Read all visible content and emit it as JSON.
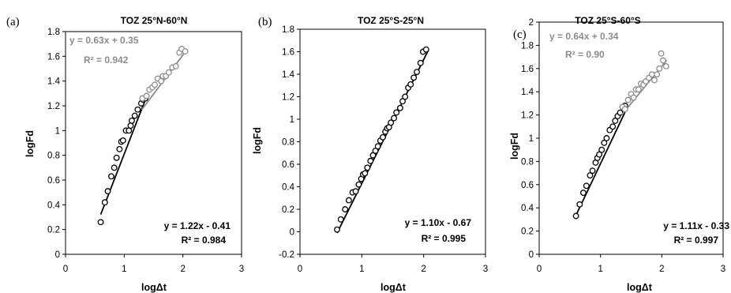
{
  "chart_data": [
    {
      "type": "scatter",
      "panel_label": "(a)",
      "title": "TOZ 25°N-60°N",
      "xlabel": "logΔt",
      "ylabel": "logFd",
      "xlim": [
        0,
        3
      ],
      "ylim": [
        0,
        1.8
      ],
      "xticks": [
        "0",
        "1",
        "2",
        "3"
      ],
      "yticks": [
        "0",
        "0.2",
        "0.4",
        "0.6",
        "0.8",
        "1",
        "1.2",
        "1.4",
        "1.6",
        "1.8"
      ],
      "grid": false,
      "colors": {
        "lower": "#000000",
        "upper": "#8c8c8c"
      },
      "series": [
        {
          "fit": {
            "slope": 1.22,
            "intercept": -0.41,
            "x_range": [
              0.6,
              1.36
            ]
          },
          "points": [
            [
              0.6,
              0.26
            ],
            [
              0.67,
              0.42
            ],
            [
              0.72,
              0.51
            ],
            [
              0.78,
              0.63
            ],
            [
              0.83,
              0.7
            ],
            [
              0.87,
              0.78
            ],
            [
              0.92,
              0.85
            ],
            [
              0.95,
              0.91
            ],
            [
              0.98,
              0.92
            ],
            [
              1.03,
              1.0
            ],
            [
              1.08,
              1.0
            ],
            [
              1.11,
              1.04
            ],
            [
              1.13,
              1.08
            ],
            [
              1.18,
              1.12
            ],
            [
              1.23,
              1.17
            ],
            [
              1.29,
              1.22
            ],
            [
              1.32,
              1.25
            ],
            [
              1.36,
              1.26
            ]
          ],
          "equation_text": "y = 1.22x - 0.41",
          "r2_text": "R² = 0.984"
        },
        {
          "fit": {
            "slope": 0.63,
            "intercept": 0.35,
            "x_range": [
              1.3,
              2.05
            ]
          },
          "points": [
            [
              1.31,
              1.26
            ],
            [
              1.38,
              1.28
            ],
            [
              1.43,
              1.33
            ],
            [
              1.48,
              1.35
            ],
            [
              1.52,
              1.37
            ],
            [
              1.57,
              1.42
            ],
            [
              1.63,
              1.4
            ],
            [
              1.66,
              1.44
            ],
            [
              1.71,
              1.44
            ],
            [
              1.76,
              1.47
            ],
            [
              1.82,
              1.51
            ],
            [
              1.88,
              1.52
            ],
            [
              1.94,
              1.63
            ],
            [
              1.98,
              1.66
            ],
            [
              2.04,
              1.64
            ]
          ],
          "equation_text": "y = 0.63x + 0.35",
          "r2_text": "R² = 0.942"
        }
      ]
    },
    {
      "type": "scatter",
      "panel_label": "(b)",
      "title": "TOZ 25°S-25°N",
      "xlabel": "logΔt",
      "ylabel": "logFd",
      "xlim": [
        0,
        3
      ],
      "ylim": [
        -0.2,
        1.8
      ],
      "xticks": [
        "0",
        "1",
        "2",
        "3"
      ],
      "yticks": [
        "-0.2",
        "0",
        "0.2",
        "0.4",
        "0.6",
        "0.8",
        "1",
        "1.2",
        "1.4",
        "1.6",
        "1.8"
      ],
      "grid": false,
      "colors": {
        "lower": "#000000"
      },
      "series": [
        {
          "fit": {
            "slope": 1.1,
            "intercept": -0.67,
            "x_range": [
              0.6,
              2.08
            ]
          },
          "points": [
            [
              0.6,
              0.02
            ],
            [
              0.66,
              0.11
            ],
            [
              0.73,
              0.2
            ],
            [
              0.79,
              0.28
            ],
            [
              0.85,
              0.35
            ],
            [
              0.9,
              0.36
            ],
            [
              0.95,
              0.42
            ],
            [
              0.99,
              0.47
            ],
            [
              1.02,
              0.51
            ],
            [
              1.05,
              0.52
            ],
            [
              1.09,
              0.57
            ],
            [
              1.14,
              0.63
            ],
            [
              1.18,
              0.68
            ],
            [
              1.22,
              0.72
            ],
            [
              1.26,
              0.76
            ],
            [
              1.3,
              0.81
            ],
            [
              1.34,
              0.84
            ],
            [
              1.38,
              0.89
            ],
            [
              1.41,
              0.92
            ],
            [
              1.44,
              0.93
            ],
            [
              1.47,
              0.97
            ],
            [
              1.52,
              1.01
            ],
            [
              1.56,
              1.06
            ],
            [
              1.62,
              1.1
            ],
            [
              1.66,
              1.16
            ],
            [
              1.7,
              1.2
            ],
            [
              1.75,
              1.28
            ],
            [
              1.79,
              1.31
            ],
            [
              1.84,
              1.37
            ],
            [
              1.89,
              1.42
            ],
            [
              1.95,
              1.5
            ],
            [
              1.99,
              1.6
            ],
            [
              2.04,
              1.62
            ]
          ],
          "equation_text": "y = 1.10x - 0.67",
          "r2_text": "R² = 0.995"
        }
      ]
    },
    {
      "type": "scatter",
      "panel_label": "(c)",
      "title": "TOZ 25°S-60°S",
      "xlabel": "logΔt",
      "ylabel": "logFd",
      "xlim": [
        0,
        3
      ],
      "ylim": [
        0,
        2
      ],
      "xticks": [
        "0",
        "1",
        "2",
        "3"
      ],
      "yticks": [
        "0",
        "0.2",
        "0.4",
        "0.6",
        "0.8",
        "1",
        "1.2",
        "1.4",
        "1.6",
        "1.8",
        "2"
      ],
      "grid": false,
      "colors": {
        "lower": "#000000",
        "upper": "#8c8c8c"
      },
      "series": [
        {
          "fit": {
            "slope": 1.11,
            "intercept": -0.33,
            "x_range": [
              0.6,
              1.4
            ]
          },
          "points": [
            [
              0.6,
              0.33
            ],
            [
              0.66,
              0.43
            ],
            [
              0.72,
              0.53
            ],
            [
              0.77,
              0.59
            ],
            [
              0.83,
              0.68
            ],
            [
              0.87,
              0.72
            ],
            [
              0.92,
              0.79
            ],
            [
              0.95,
              0.83
            ],
            [
              0.98,
              0.86
            ],
            [
              1.02,
              0.9
            ],
            [
              1.06,
              0.96
            ],
            [
              1.1,
              1.0
            ],
            [
              1.15,
              1.07
            ],
            [
              1.2,
              1.1
            ],
            [
              1.24,
              1.15
            ],
            [
              1.28,
              1.19
            ],
            [
              1.32,
              1.22
            ],
            [
              1.36,
              1.27
            ],
            [
              1.4,
              1.28
            ]
          ],
          "equation_text": "y = 1.11x - 0.33",
          "r2_text": "R² = 0.997"
        },
        {
          "fit": {
            "slope": 0.64,
            "intercept": 0.34,
            "x_range": [
              1.35,
              2.08
            ]
          },
          "points": [
            [
              1.36,
              1.27
            ],
            [
              1.4,
              1.25
            ],
            [
              1.45,
              1.33
            ],
            [
              1.5,
              1.38
            ],
            [
              1.54,
              1.35
            ],
            [
              1.58,
              1.42
            ],
            [
              1.62,
              1.42
            ],
            [
              1.66,
              1.47
            ],
            [
              1.7,
              1.46
            ],
            [
              1.74,
              1.49
            ],
            [
              1.79,
              1.52
            ],
            [
              1.84,
              1.55
            ],
            [
              1.88,
              1.5
            ],
            [
              1.92,
              1.55
            ],
            [
              1.96,
              1.6
            ],
            [
              1.99,
              1.73
            ],
            [
              2.02,
              1.67
            ],
            [
              2.07,
              1.62
            ]
          ],
          "equation_text": "y = 0.64x + 0.34",
          "r2_text": "R² = 0.90"
        }
      ]
    }
  ]
}
